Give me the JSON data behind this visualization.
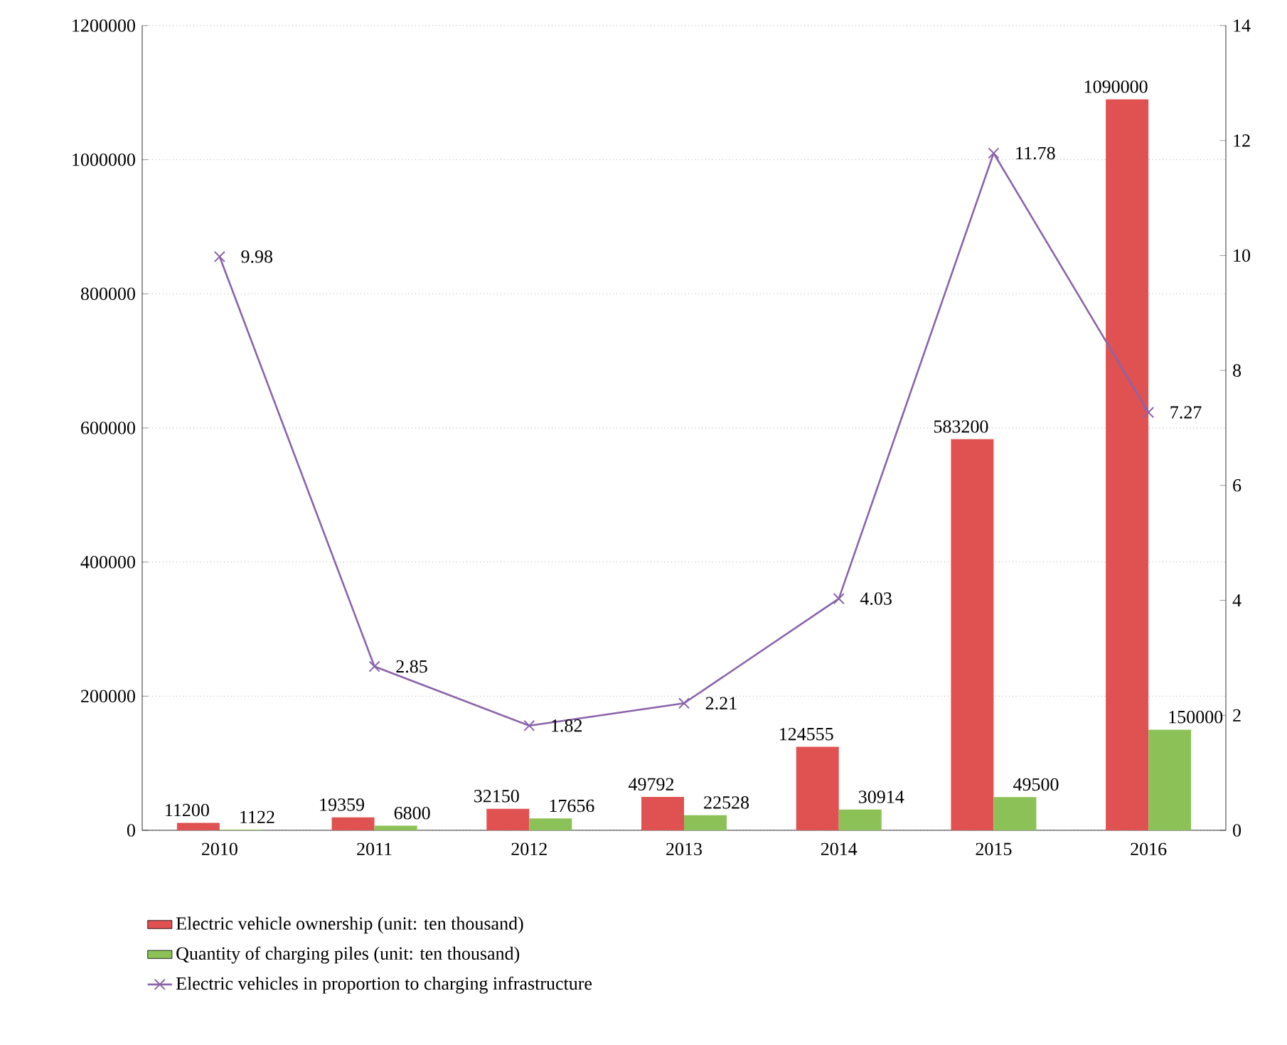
{
  "chart_data": {
    "type": "bar",
    "categories": [
      "2010",
      "2011",
      "2012",
      "2013",
      "2014",
      "2015",
      "2016"
    ],
    "series": [
      {
        "name": "Electric vehicle ownership (unit: ten thousand)",
        "color": "#e05252",
        "values": [
          11200,
          19359,
          32150,
          49792,
          124555,
          583200,
          1090000
        ]
      },
      {
        "name": "Quantity of charging piles (unit: ten thousand)",
        "color": "#8cc157",
        "values": [
          1122,
          6800,
          17656,
          22528,
          30914,
          49500,
          150000
        ]
      },
      {
        "name": "Electric vehicles in proportion to charging infrastructure",
        "type": "line",
        "axis": "y2",
        "marker": "cross",
        "color": "#8a64ab",
        "values": [
          9.98,
          2.85,
          1.82,
          2.21,
          4.03,
          11.78,
          7.27
        ]
      }
    ],
    "ylim": [
      0,
      1200000
    ],
    "yticks": [
      0,
      200000,
      400000,
      600000,
      800000,
      1000000,
      1200000
    ],
    "y2lim": [
      0,
      14
    ],
    "y2ticks": [
      0,
      2,
      4,
      6,
      8,
      10,
      12,
      14
    ],
    "grid": "y",
    "legend": "bottom",
    "data_labels": true
  }
}
